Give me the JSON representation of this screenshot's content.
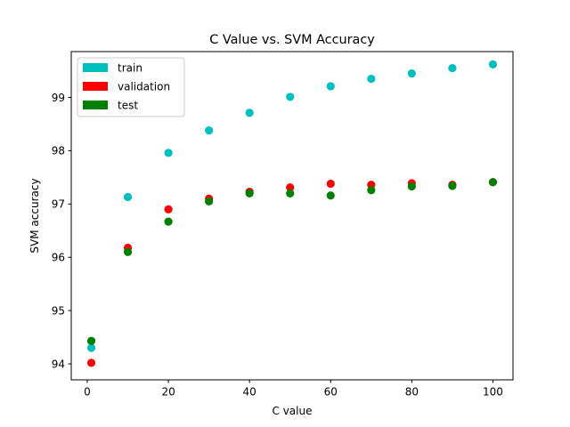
{
  "chart_data": {
    "type": "scatter",
    "title": "C Value vs. SVM Accuracy",
    "xlabel": "C value",
    "ylabel": "SVM accuracy",
    "xlim": [
      -3.95,
      104.95
    ],
    "ylim": [
      93.7,
      99.86
    ],
    "xticks": [
      0,
      20,
      40,
      60,
      80,
      100
    ],
    "yticks": [
      94,
      95,
      96,
      97,
      98,
      99
    ],
    "grid": false,
    "legend_position": "top-left",
    "series": [
      {
        "name": "train",
        "color": "#00bfbf",
        "x": [
          1,
          10,
          20,
          30,
          40,
          50,
          60,
          70,
          80,
          90,
          100
        ],
        "y": [
          94.3,
          97.13,
          97.96,
          98.38,
          98.71,
          99.01,
          99.21,
          99.35,
          99.45,
          99.55,
          99.62
        ]
      },
      {
        "name": "validation",
        "color": "#ff0000",
        "x": [
          1,
          10,
          20,
          30,
          40,
          50,
          60,
          70,
          80,
          90,
          100
        ],
        "y": [
          94.02,
          96.18,
          96.9,
          97.1,
          97.23,
          97.31,
          97.38,
          97.36,
          97.39,
          97.36,
          97.41
        ]
      },
      {
        "name": "test",
        "color": "#008000",
        "x": [
          1,
          10,
          20,
          30,
          40,
          50,
          60,
          70,
          80,
          90,
          100
        ],
        "y": [
          94.43,
          96.1,
          96.67,
          97.05,
          97.2,
          97.2,
          97.16,
          97.26,
          97.33,
          97.34,
          97.41
        ]
      }
    ]
  }
}
